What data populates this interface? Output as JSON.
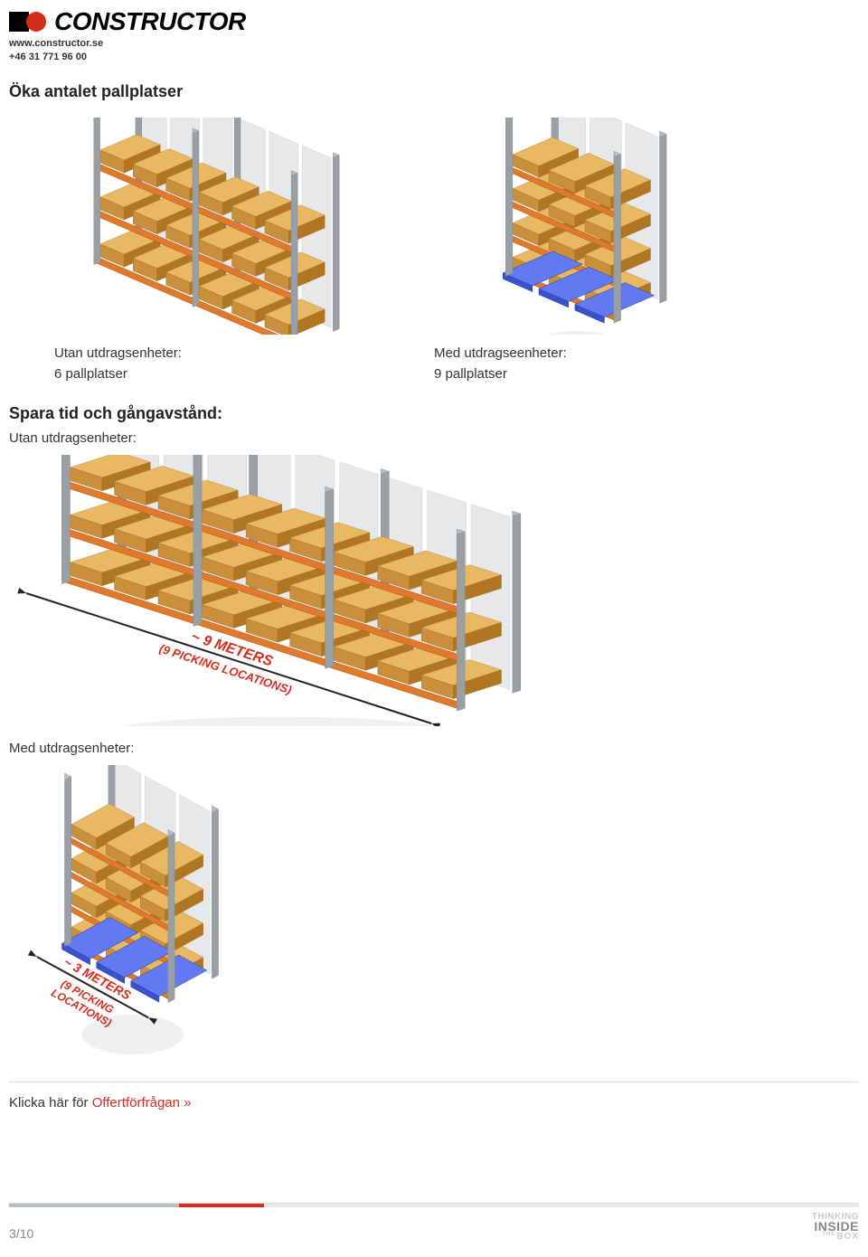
{
  "header": {
    "brand": "CONSTRUCTOR",
    "website": "www.constructor.se",
    "phone": "+46 31 771 96 00",
    "logo_colors": {
      "black": "#000000",
      "red": "#d92b1b"
    }
  },
  "section1": {
    "heading": "Öka antalet pallplatser",
    "left": {
      "line1": "Utan utdragsenheter:",
      "line2": "6 pallplatser"
    },
    "right": {
      "line1": "Med utdragseenheter:",
      "line2": "9 pallplatser"
    },
    "rack_left": {
      "bays": 2,
      "levels": 3,
      "pallets_per_bay": 3,
      "upright_color": "#b8bdc2",
      "beam_color": "#e07a2a",
      "pallet_top_color": "#e8b863",
      "pallet_side_color": "#c98f3a",
      "back_color": "#e6e8ea"
    },
    "rack_right": {
      "bays": 1,
      "levels": 4,
      "pallets_per_bay": 3,
      "upright_color": "#b8bdc2",
      "beam_color": "#e07a2a",
      "pallet_top_color": "#e8b863",
      "pallet_side_color": "#c98f3a",
      "base_color": "#3a52c9",
      "back_color": "#e6e8ea"
    }
  },
  "section2": {
    "heading": "Spara tid och gångavstånd:",
    "sub1": "Utan utdragsenheter:",
    "rack1": {
      "bays": 3,
      "levels": 3,
      "pallets_per_bay": 3,
      "upright_color": "#b8bdc2",
      "beam_color": "#e07a2a",
      "pallet_top_color": "#e8b863",
      "pallet_side_color": "#c98f3a",
      "back_color": "#e6e8ea",
      "dim_label": "~ 9 METERS",
      "dim_sub": "(9 PICKING LOCATIONS)",
      "dim_color": "#d92b1b"
    },
    "sub2": "Med utdragsenheter:",
    "rack2": {
      "bays": 1,
      "levels": 4,
      "pallets_per_bay": 3,
      "upright_color": "#b8bdc2",
      "beam_color": "#e07a2a",
      "pallet_top_color": "#e8b863",
      "pallet_side_color": "#c98f3a",
      "base_color": "#3a52c9",
      "back_color": "#e6e8ea",
      "dim_label": "~ 3 METERS",
      "dim_sub1": "(9 PICKING",
      "dim_sub2": "LOCATIONS)",
      "dim_color": "#d92b1b"
    }
  },
  "link": {
    "prefix": "Klicka här för ",
    "link_text": "Offertförfrågan »"
  },
  "footer": {
    "page_current": 3,
    "page_total": 10,
    "tagline1": "THINKING",
    "tagline2": "INSIDE",
    "tagline3_the": "THE",
    "tagline3_box": "BOX",
    "progress": {
      "done_color": "#b8bdc2",
      "current_color": "#d92b1b",
      "rest_color": "#e6e8ea"
    }
  },
  "style": {
    "text_color": "#333333",
    "heading_fontsize": 18,
    "body_fontsize": 15
  }
}
